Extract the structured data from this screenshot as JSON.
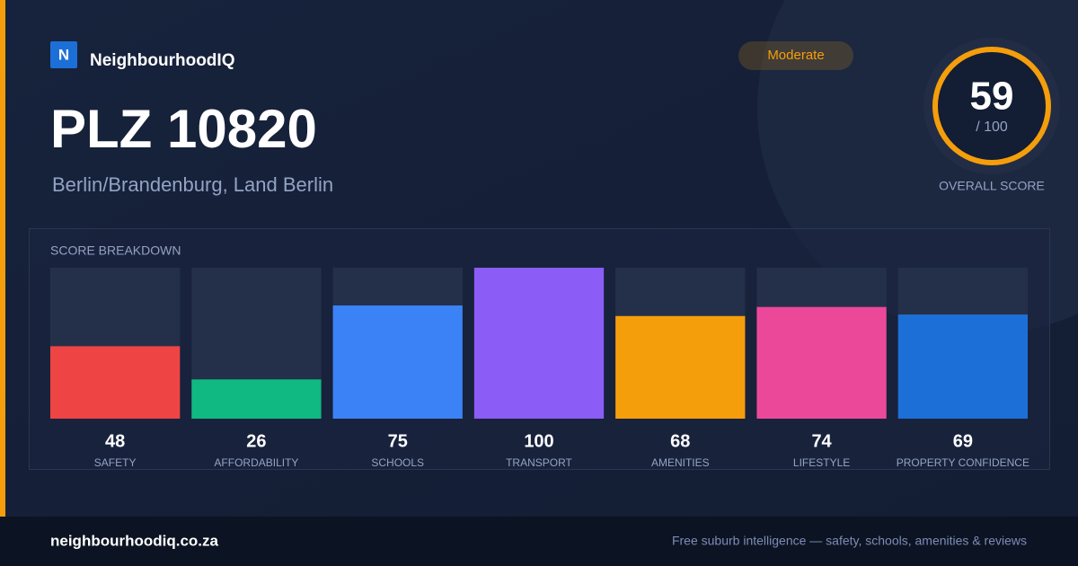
{
  "brand": "NeighbourhoodIQ",
  "logo_letter": "N",
  "badge": "Moderate",
  "title": "PLZ 10820",
  "subtitle": "Berlin/Brandenburg, Land Berlin",
  "score": {
    "value": 59,
    "max_label": "/ 100",
    "label": "OVERALL SCORE"
  },
  "chart_data": {
    "type": "bar",
    "title": "SCORE BREAKDOWN",
    "categories": [
      "SAFETY",
      "AFFORDABILITY",
      "SCHOOLS",
      "TRANSPORT",
      "AMENITIES",
      "LIFESTYLE",
      "PROPERTY CONFIDENCE"
    ],
    "values": [
      48,
      26,
      75,
      100,
      68,
      74,
      69
    ],
    "colors": [
      "#ef4444",
      "#10b981",
      "#3b82f6",
      "#8b5cf6",
      "#f59e0b",
      "#ec4899",
      "#1d6fd8"
    ],
    "ylim": [
      0,
      100
    ]
  },
  "footer": {
    "url": "neighbourhoodiq.co.za",
    "tagline": "Free suburb intelligence — safety, schools, amenities & reviews"
  }
}
